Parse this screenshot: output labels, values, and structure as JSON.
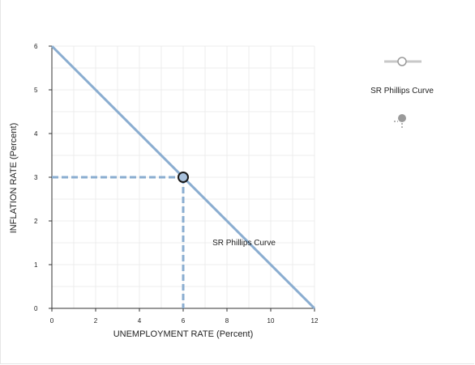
{
  "chart_data": {
    "type": "line",
    "xlabel": "UNEMPLOYMENT RATE (Percent)",
    "ylabel": "INFLATION RATE (Percent)",
    "xlim": [
      0,
      12
    ],
    "ylim": [
      0,
      6
    ],
    "x_ticks": [
      "0",
      "2",
      "4",
      "6",
      "8",
      "10",
      "12"
    ],
    "y_ticks": [
      "0",
      "1",
      "2",
      "3",
      "4",
      "5",
      "6"
    ],
    "grid": true,
    "series": [
      {
        "name": "SR Phillips Curve",
        "color": "#8aadd0",
        "points": [
          [
            0,
            6
          ],
          [
            12,
            0
          ]
        ]
      }
    ],
    "marked_point": {
      "x": 6,
      "y": 3,
      "color": "#a9c1dc"
    },
    "curve_label": {
      "text": "SR Phillips Curve",
      "x": 9,
      "y": 1.5
    },
    "legend": {
      "placement": "top-right",
      "entries": [
        {
          "label": "SR Phillips Curve",
          "icon": "line-with-circle-icon"
        },
        {
          "label": "",
          "icon": "point-marker-icon"
        }
      ]
    }
  }
}
